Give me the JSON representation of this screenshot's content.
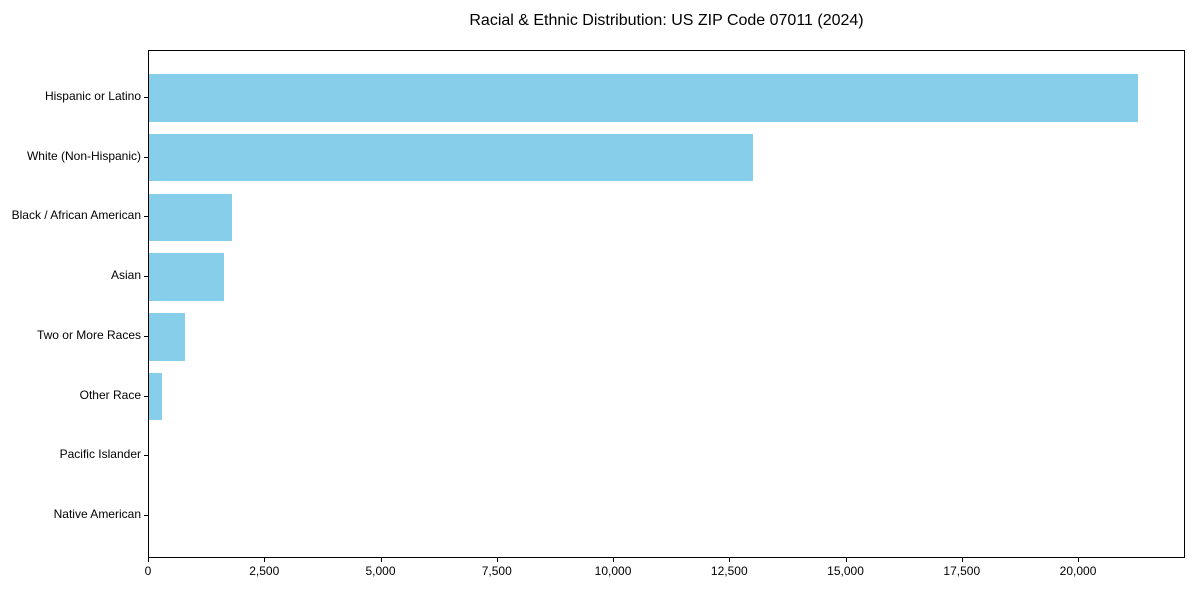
{
  "chart_data": {
    "type": "bar",
    "orientation": "horizontal",
    "title": "Racial & Ethnic Distribution: US ZIP Code 07011 (2024)",
    "categories": [
      "Hispanic or Latino",
      "White (Non-Hispanic)",
      "Black / African American",
      "Asian",
      "Two or More Races",
      "Other Race",
      "Pacific Islander",
      "Native American"
    ],
    "values": [
      21270,
      12990,
      1780,
      1610,
      775,
      275,
      0,
      0
    ],
    "bar_color": "#87CEEB",
    "text_color": "#000000",
    "axis_color": "#000000",
    "background_color": "#ffffff",
    "xlabel": "",
    "ylabel": "",
    "xlim": [
      0,
      22300
    ],
    "xticks": [
      0,
      2500,
      5000,
      7500,
      10000,
      12500,
      15000,
      17500,
      20000
    ],
    "xtick_labels": [
      "0",
      "2,500",
      "5,000",
      "7,500",
      "10,000",
      "12,500",
      "15,000",
      "17,500",
      "20,000"
    ],
    "grid": false,
    "legend": null
  }
}
